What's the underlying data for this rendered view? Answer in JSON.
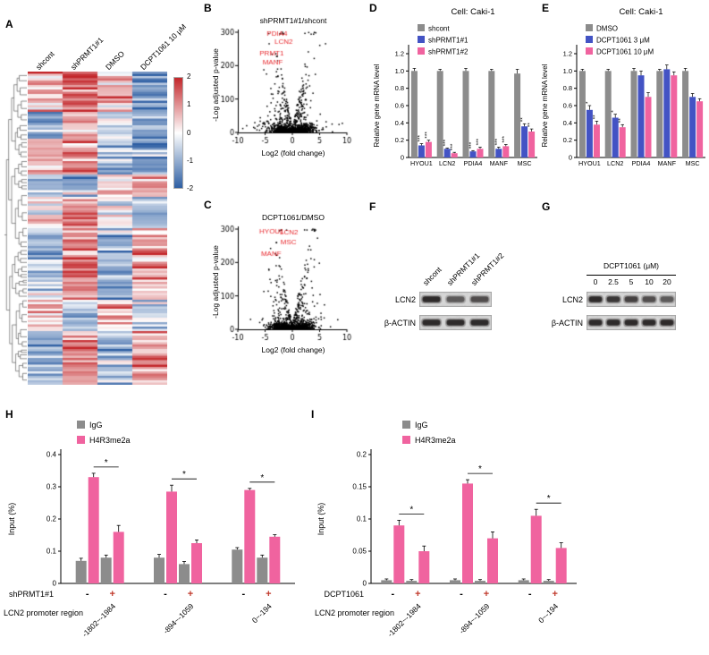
{
  "colors": {
    "gray": "#8c8c8c",
    "blue": "#4353c4",
    "pink": "#f0639f",
    "volcano_label": "#e8282d",
    "heat_red": "#c3272b",
    "heat_blue": "#2e5fa3"
  },
  "panels": {
    "a": {
      "label": "A"
    },
    "b": {
      "label": "B"
    },
    "c": {
      "label": "C"
    },
    "d": {
      "label": "D"
    },
    "e": {
      "label": "E"
    },
    "f": {
      "label": "F",
      "lanes": [
        "shcont",
        "shPRMT1#1",
        "shPRMT1#2"
      ],
      "rows": [
        "LCN2",
        "β-ACTIN"
      ],
      "band_intensities": {
        "LCN2": [
          1.0,
          0.5,
          0.62
        ],
        "ACTIN": [
          1.0,
          1.0,
          1.0
        ]
      }
    },
    "g": {
      "label": "G",
      "treatment": "DCPT1061 (μM)",
      "doses": [
        "0",
        "2.5",
        "5",
        "10",
        "20"
      ],
      "rows": [
        "LCN2",
        "β-ACTIN"
      ],
      "band_intensities": {
        "LCN2": [
          1.0,
          0.85,
          0.75,
          0.62,
          0.5
        ],
        "ACTIN": [
          1.0,
          1.0,
          1.0,
          1.0,
          1.0
        ]
      }
    },
    "h": {
      "label": "H"
    },
    "i": {
      "label": "I"
    }
  },
  "chart_data": [
    {
      "type": "heatmap",
      "panel": "A",
      "columns": [
        "shcont",
        "shPRMT1#1",
        "DMSO",
        "DCPT1061 10 μM"
      ],
      "colorbar": {
        "ticks": [
          "2",
          "1",
          "0",
          "-1",
          "-2"
        ],
        "top_color": "#c3272b",
        "mid_color": "#ffffff",
        "bottom_color": "#2e5fa3"
      }
    },
    {
      "type": "scatter",
      "panel": "B",
      "title": "shPRMT1#1/shcont",
      "xlabel": "Log2 (fold change)",
      "ylabel": "-Log adjusted p-value",
      "xlim": [
        -10,
        10
      ],
      "ylim": [
        0,
        300
      ],
      "xticks": [
        -10,
        -5,
        0,
        5,
        10
      ],
      "yticks": [
        0,
        100,
        200,
        300
      ],
      "labeled_genes": [
        {
          "name": "PDIA4",
          "x": -2.8,
          "y": 290
        },
        {
          "name": "LCN2",
          "x": -1.6,
          "y": 265
        },
        {
          "name": "PRMT1",
          "x": -3.8,
          "y": 230
        },
        {
          "name": "MANF",
          "x": -3.6,
          "y": 203
        }
      ]
    },
    {
      "type": "scatter",
      "panel": "C",
      "title": "DCPT1061/DMSO",
      "xlabel": "Log2 (fold change)",
      "ylabel": "-Log adjusted p-value",
      "xlim": [
        -10,
        10
      ],
      "ylim": [
        0,
        300
      ],
      "xticks": [
        -10,
        -5,
        0,
        5,
        10
      ],
      "yticks": [
        0,
        100,
        200,
        300
      ],
      "labeled_genes": [
        {
          "name": "HYOU1",
          "x": -3.8,
          "y": 286
        },
        {
          "name": "LCN2",
          "x": -0.6,
          "y": 283
        },
        {
          "name": "MSC",
          "x": -0.7,
          "y": 254
        },
        {
          "name": "MANF",
          "x": -3.9,
          "y": 220
        }
      ]
    },
    {
      "type": "bar",
      "panel": "D",
      "title": "Cell: Caki-1",
      "ylabel": "Relative gene mRNA level",
      "ylim": [
        0,
        1.2
      ],
      "yticks": [
        0,
        0.2,
        0.4,
        0.6,
        0.8,
        1.0,
        1.2
      ],
      "categories": [
        "HYOU1",
        "LCN2",
        "PDIA4",
        "MANF",
        "MSC"
      ],
      "series": [
        {
          "name": "shcont",
          "color": "#8c8c8c",
          "values": [
            1.0,
            1.0,
            1.0,
            1.0,
            0.97
          ],
          "errors": [
            0.03,
            0.02,
            0.03,
            0.02,
            0.05
          ]
        },
        {
          "name": "shPRMT1#1",
          "color": "#4353c4",
          "values": [
            0.14,
            0.1,
            0.07,
            0.1,
            0.36
          ],
          "errors": [
            0.02,
            0.01,
            0.01,
            0.02,
            0.03
          ]
        },
        {
          "name": "shPRMT1#2",
          "color": "#f0639f",
          "values": [
            0.18,
            0.05,
            0.1,
            0.13,
            0.3
          ],
          "errors": [
            0.02,
            0.01,
            0.02,
            0.02,
            0.03
          ]
        }
      ],
      "sig": [
        [
          "***",
          "***"
        ],
        [
          "***",
          "***"
        ],
        [
          "***",
          "***"
        ],
        [
          "***",
          "***"
        ],
        [
          "**",
          "**"
        ]
      ]
    },
    {
      "type": "bar",
      "panel": "E",
      "title": "Cell: Caki-1",
      "ylabel": "Relative gene mRNA level",
      "ylim": [
        0,
        1.2
      ],
      "yticks": [
        0,
        0.2,
        0.4,
        0.6,
        0.8,
        1.0,
        1.2
      ],
      "categories": [
        "HYOU1",
        "LCN2",
        "PDIA4",
        "MANF",
        "MSC"
      ],
      "series": [
        {
          "name": "DMSO",
          "color": "#8c8c8c",
          "values": [
            1.0,
            1.0,
            1.0,
            1.0,
            1.0
          ],
          "errors": [
            0.02,
            0.02,
            0.03,
            0.02,
            0.03
          ]
        },
        {
          "name": "DCPT1061 3 μM",
          "color": "#4353c4",
          "values": [
            0.55,
            0.46,
            0.95,
            1.02,
            0.7
          ],
          "errors": [
            0.05,
            0.04,
            0.05,
            0.05,
            0.04
          ]
        },
        {
          "name": "DCPT1061 10 μM",
          "color": "#f0639f",
          "values": [
            0.38,
            0.35,
            0.7,
            0.95,
            0.65
          ],
          "errors": [
            0.04,
            0.03,
            0.05,
            0.04,
            0.03
          ]
        }
      ],
      "sig": [
        [
          "*",
          "**"
        ],
        [
          "*",
          "**"
        ],
        [
          "",
          ""
        ],
        [
          "",
          ""
        ],
        [
          "",
          ""
        ]
      ]
    },
    {
      "type": "bar",
      "panel": "H",
      "ylabel": "Input (%)",
      "ylim": [
        0,
        0.4
      ],
      "yticks": [
        0,
        0.1,
        0.2,
        0.3,
        0.4
      ],
      "series_legend": [
        {
          "name": "IgG",
          "color": "#8c8c8c"
        },
        {
          "name": "H4R3me2a",
          "color": "#f0639f"
        }
      ],
      "condition_label": "shPRMT1#1",
      "pair_signs": [
        "-",
        "+"
      ],
      "plus_color": "#c0392b",
      "xlabel": "LCN2 promoter region",
      "groups": [
        "-1802~-1984",
        "-894~-1059",
        "0~-194"
      ],
      "values": [
        [
          0.07,
          0.33,
          0.08,
          0.16
        ],
        [
          0.08,
          0.285,
          0.06,
          0.125
        ],
        [
          0.105,
          0.29,
          0.08,
          0.145
        ]
      ],
      "errors": [
        [
          0.008,
          0.012,
          0.008,
          0.02
        ],
        [
          0.01,
          0.02,
          0.008,
          0.01
        ],
        [
          0.006,
          0.005,
          0.008,
          0.006
        ]
      ],
      "group_sig": [
        "*",
        "*",
        "*"
      ]
    },
    {
      "type": "bar",
      "panel": "I",
      "ylabel": "Input (%)",
      "ylim": [
        0,
        0.2
      ],
      "yticks": [
        0,
        0.05,
        0.1,
        0.15,
        0.2
      ],
      "series_legend": [
        {
          "name": "IgG",
          "color": "#8c8c8c"
        },
        {
          "name": "H4R3me2a",
          "color": "#f0639f"
        }
      ],
      "condition_label": "DCPT1061",
      "pair_signs": [
        "-",
        "+"
      ],
      "plus_color": "#c0392b",
      "xlabel": "LCN2 promoter region",
      "groups": [
        "-1802~-1984",
        "-894~-1059",
        "0~-194"
      ],
      "values": [
        [
          0.005,
          0.09,
          0.004,
          0.05
        ],
        [
          0.005,
          0.155,
          0.004,
          0.07
        ],
        [
          0.005,
          0.105,
          0.004,
          0.055
        ]
      ],
      "errors": [
        [
          0.002,
          0.008,
          0.002,
          0.008
        ],
        [
          0.002,
          0.006,
          0.002,
          0.01
        ],
        [
          0.002,
          0.01,
          0.002,
          0.008
        ]
      ],
      "group_sig": [
        "*",
        "*",
        "*"
      ]
    }
  ]
}
